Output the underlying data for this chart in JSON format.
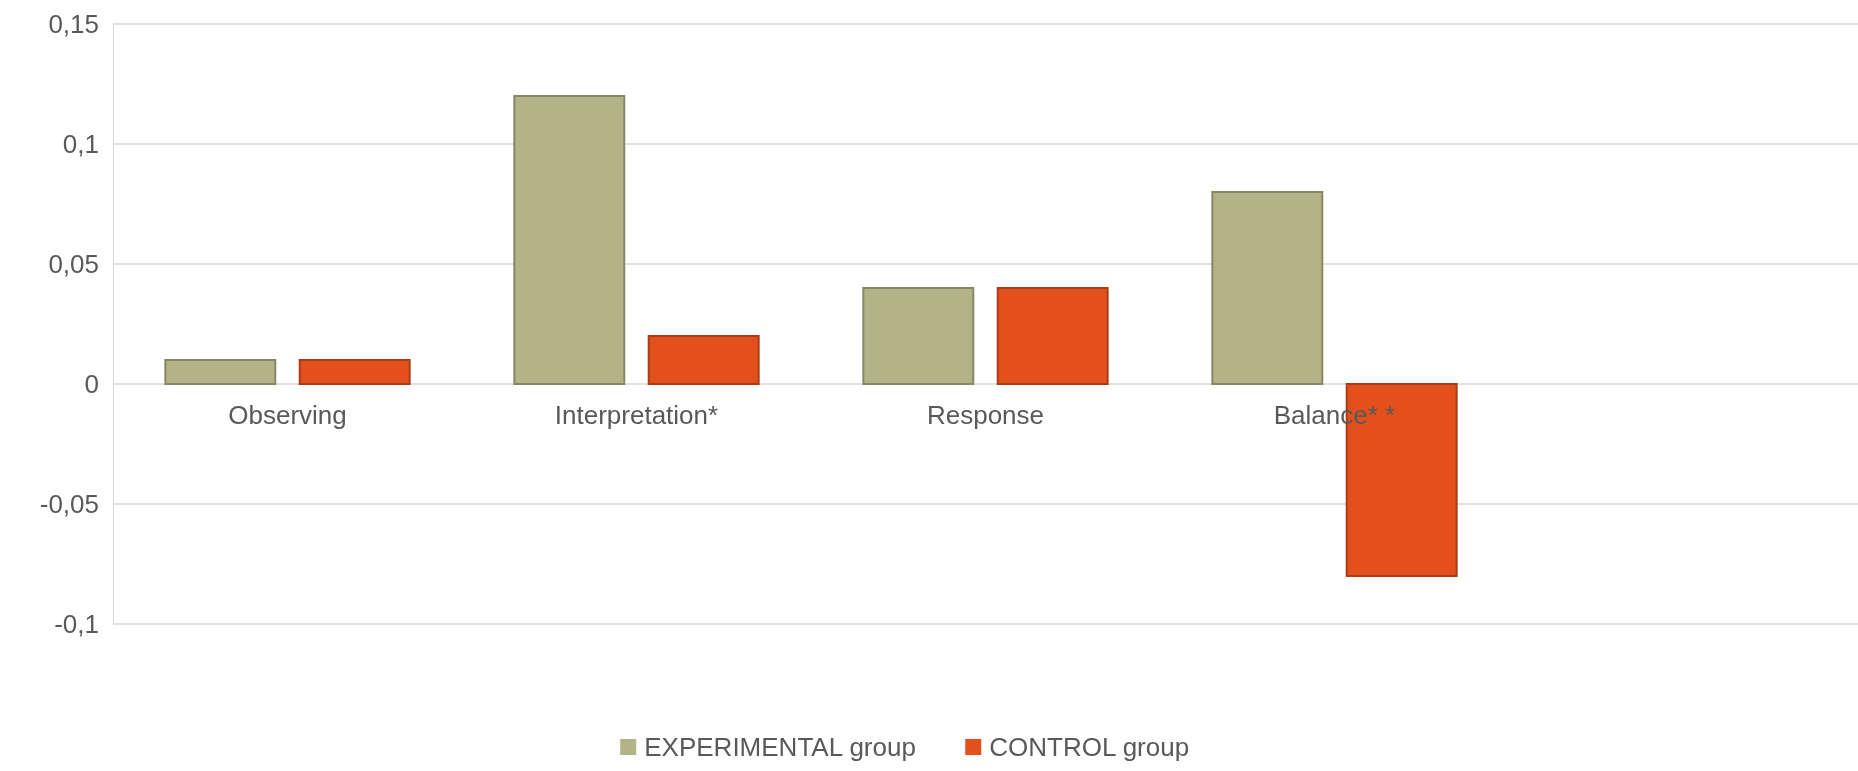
{
  "chart_data": {
    "type": "bar",
    "categories": [
      "Observing",
      "Interpretation*",
      "Response",
      "Balance*  *",
      null
    ],
    "series": [
      {
        "name": "EXPERIMENTAL group",
        "color": "#b3b388",
        "values": [
          0.01,
          0.12,
          0.04,
          0.08,
          null
        ]
      },
      {
        "name": "CONTROL group",
        "color": "#e3501c",
        "values": [
          0.01,
          0.02,
          0.04,
          -0.08,
          null
        ]
      }
    ],
    "ylim": [
      -0.1,
      0.15
    ],
    "yticks": [
      {
        "value": -0.1,
        "label": "-0,1"
      },
      {
        "value": -0.05,
        "label": "-0,05"
      },
      {
        "value": 0,
        "label": "0"
      },
      {
        "value": 0.05,
        "label": "0,05"
      },
      {
        "value": 0.1,
        "label": "0,1"
      },
      {
        "value": 0.15,
        "label": "0,15"
      }
    ],
    "grid": "y",
    "legend": "bottom"
  }
}
